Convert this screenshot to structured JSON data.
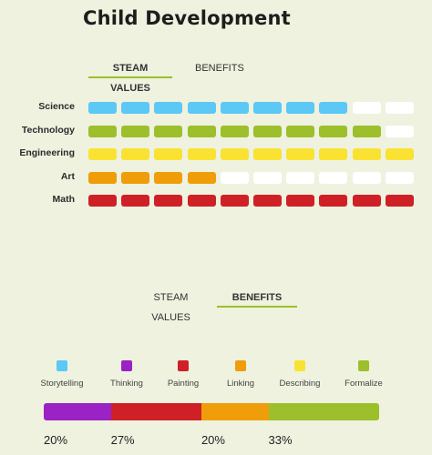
{
  "title": "Child Development",
  "tabs_top": [
    {
      "label": "STEAM VALUES",
      "active": true
    },
    {
      "label": "BENEFITS",
      "active": false
    }
  ],
  "steam_rows": [
    {
      "label": "Science",
      "color": "#5bc8f5",
      "filled": 8,
      "total": 10
    },
    {
      "label": "Technology",
      "color": "#9cbf2b",
      "filled": 9,
      "total": 10
    },
    {
      "label": "Engineering",
      "color": "#fae233",
      "filled": 10,
      "total": 10
    },
    {
      "label": "Art",
      "color": "#f09d0a",
      "filled": 4,
      "total": 10
    },
    {
      "label": "Math",
      "color": "#cf2027",
      "filled": 10,
      "total": 10
    }
  ],
  "tabs_bottom": [
    {
      "label": "STEAM VALUES",
      "active": false
    },
    {
      "label": "BENEFITS",
      "active": true
    }
  ],
  "legend": [
    {
      "label": "Storytelling",
      "color": "#5bc8f5",
      "icon": "storytelling-swatch"
    },
    {
      "label": "Thinking",
      "color": "#9b22c4",
      "icon": "thinking-swatch"
    },
    {
      "label": "Painting",
      "color": "#cf2027",
      "icon": "painting-swatch"
    },
    {
      "label": "Linking",
      "color": "#f09d0a",
      "icon": "linking-swatch"
    },
    {
      "label": "Describing",
      "color": "#fae233",
      "icon": "describing-swatch"
    },
    {
      "label": "Formalize",
      "color": "#9cbf2b",
      "icon": "formalize-swatch"
    }
  ],
  "benefits_bar": [
    {
      "color": "#9b22c4",
      "value": 20,
      "label": "20%"
    },
    {
      "color": "#cf2027",
      "value": 27,
      "label": "27%"
    },
    {
      "color": "#f09d0a",
      "value": 20,
      "label": "20%"
    },
    {
      "color": "#9cbf2b",
      "value": 33,
      "label": "33%"
    }
  ]
}
